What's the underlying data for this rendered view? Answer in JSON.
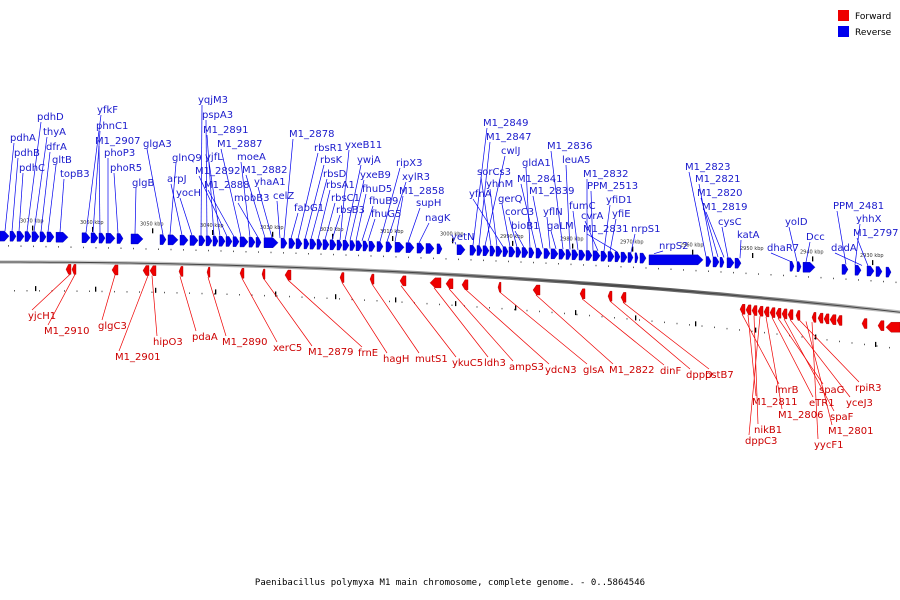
{
  "caption": "Paenibacillus polymyxa M1 main chromosome, complete genome. - 0..5864546",
  "legend": [
    {
      "label": "Forward",
      "color": "#ee0000"
    },
    {
      "label": "Reverse",
      "color": "#0000ee"
    }
  ],
  "colors": {
    "forward": "#ee0000",
    "reverse": "#0000ee",
    "axis": "#666666"
  },
  "ticks": [
    "3070 kbp",
    "3060 kbp",
    "3050 kbp",
    "3040 kbp",
    "3030 kbp",
    "3020 kbp",
    "3010 kbp",
    "3000 kbp",
    "2990 kbp",
    "2980 kbp",
    "2970 kbp",
    "2960 kbp",
    "2950 kbp",
    "2940 kbp",
    "2930 kbp"
  ],
  "reverse_genes": [
    "pdhA",
    "pdhB",
    "pdhC",
    "pdhD",
    "thyA",
    "dfrA",
    "gltB",
    "topB3",
    "yfkF",
    "phnC1",
    "M1_2907",
    "phoP3",
    "phoR5",
    "glgB",
    "glgA3",
    "glnQ9",
    "arpJ",
    "yocH",
    "yqjM3",
    "pspA3",
    "M1_2891",
    "yjfL",
    "M1_2892",
    "M1_2888",
    "M1_2887",
    "moeA",
    "mobB3",
    "M1_2882",
    "yhaA1",
    "celZ",
    "M1_2878",
    "fabG1",
    "rbsR1",
    "rbsK",
    "rbsD",
    "rbsA1",
    "rbsC1",
    "rbsB3",
    "yxeB11",
    "ywjA",
    "yxeB9",
    "fhuD5",
    "fhuB9",
    "fhuG5",
    "ripX3",
    "xylR3",
    "M1_2858",
    "supH",
    "nagK",
    "yetN",
    "M1_2849",
    "M1_2847",
    "cwlJ",
    "sorCs3",
    "yhhM",
    "yfnA",
    "gerQ",
    "corC3",
    "bioB1",
    "gldA1",
    "M1_2841",
    "M1_2839",
    "yflN",
    "gaLM",
    "M1_2836",
    "leuA5",
    "fumC",
    "M1_2832",
    "PPM_2513",
    "cvrA",
    "yfiD1",
    "yfiE",
    "M1_2831",
    "nrpS1",
    "nrpS2",
    "M1_2823",
    "M1_2821",
    "M1_2820",
    "M1_2819",
    "cysC",
    "katA",
    "dhaR7",
    "yolD",
    "Dcc",
    "PPM_2481",
    "yhhX",
    "dadA",
    "M1_2797"
  ],
  "forward_genes": [
    "yjcH1",
    "M1_2910",
    "glgC3",
    "M1_2901",
    "hipO3",
    "pdaA",
    "M1_2890",
    "xerC5",
    "M1_2879",
    "frnE",
    "hagH",
    "mutS1",
    "ykuC5",
    "ldh3",
    "ampS3",
    "ydcN3",
    "glsA",
    "M1_2822",
    "dinF",
    "dppD",
    "pstB7",
    "lmrB",
    "M1_2811",
    "nikB1",
    "dppC3",
    "M1_2806",
    "eTR1",
    "spaG",
    "spaF",
    "yceJ3",
    "rpiR3",
    "M1_2801",
    "yycF1"
  ]
}
